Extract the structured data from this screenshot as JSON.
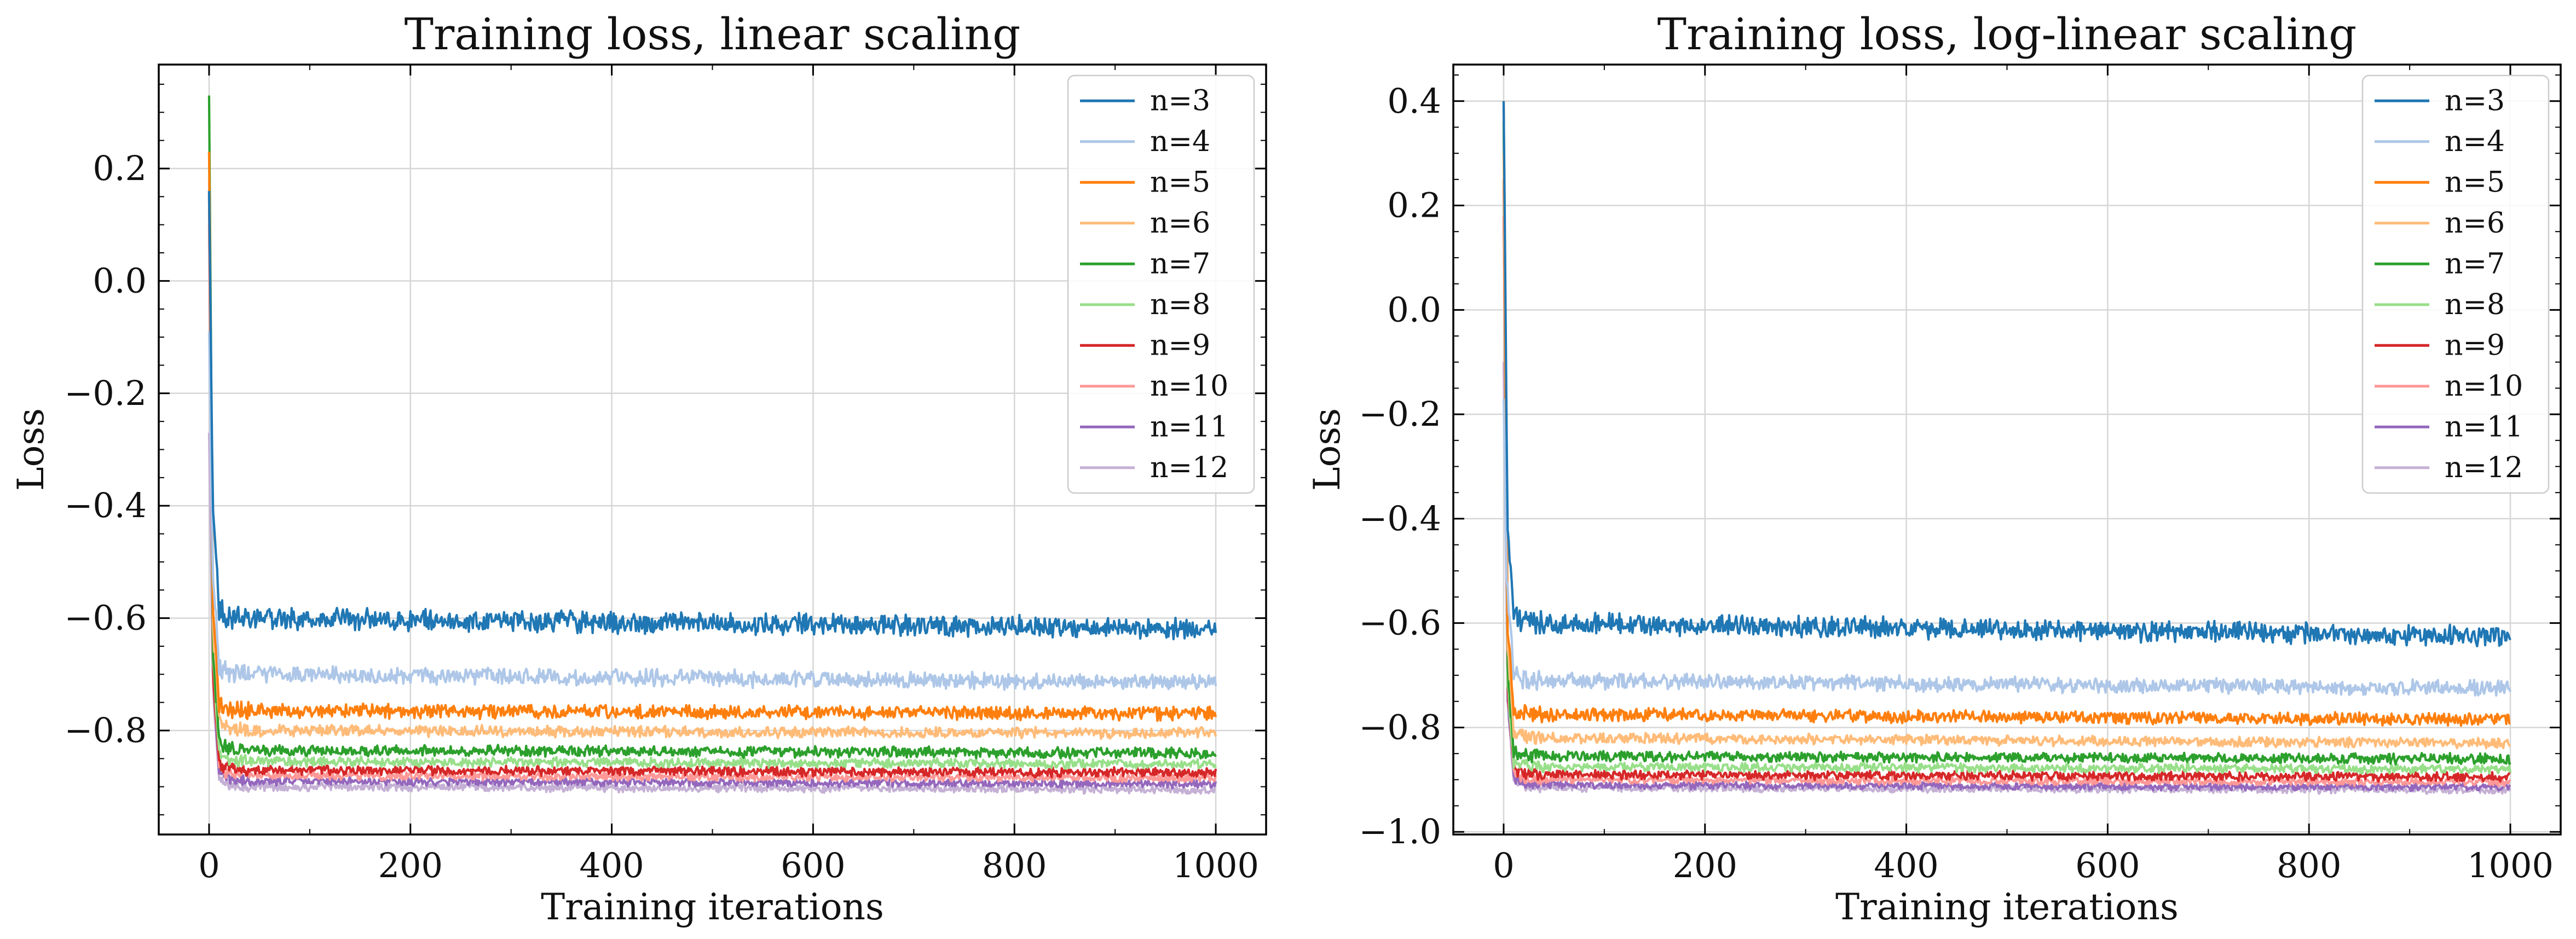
{
  "figure": {
    "series_colors": {
      "n=3": "#1f77b4",
      "n=4": "#aec7e8",
      "n=5": "#ff7f0e",
      "n=6": "#ffbb78",
      "n=7": "#2ca02c",
      "n=8": "#98df8a",
      "n=9": "#d62728",
      "n=10": "#ff9896",
      "n=11": "#9467bd",
      "n=12": "#c5b0d5"
    }
  },
  "chart_data": [
    {
      "type": "line",
      "title": "Training loss, linear scaling",
      "xlabel": "Training iterations",
      "ylabel": "Loss",
      "xlim": [
        -50,
        1050
      ],
      "ylim": [
        -0.985,
        0.385
      ],
      "xticks": [
        0,
        200,
        400,
        600,
        800,
        1000
      ],
      "yticks": [
        -0.8,
        -0.6,
        -0.4,
        -0.2,
        0.0,
        0.2
      ],
      "ytick_labels": [
        "−0.8",
        "−0.6",
        "−0.4",
        "−0.2",
        "0.0",
        "0.2"
      ],
      "grid": true,
      "legend_position": "top-right",
      "series": [
        {
          "name": "n=3",
          "start": 0.16,
          "peak_at": 40,
          "early_min": -0.57,
          "plateau": -0.6,
          "final": -0.62,
          "noise": 0.016
        },
        {
          "name": "n=4",
          "start": -0.09,
          "peak_at": 40,
          "early_min": -0.67,
          "plateau": -0.7,
          "final": -0.715,
          "noise": 0.012
        },
        {
          "name": "n=5",
          "start": 0.23,
          "peak_at": 40,
          "early_min": -0.74,
          "plateau": -0.765,
          "final": -0.77,
          "noise": 0.01
        },
        {
          "name": "n=6",
          "start": 0.18,
          "peak_at": 40,
          "early_min": -0.77,
          "plateau": -0.8,
          "final": -0.805,
          "noise": 0.008
        },
        {
          "name": "n=7",
          "start": 0.33,
          "peak_at": 40,
          "early_min": -0.81,
          "plateau": -0.835,
          "final": -0.84,
          "noise": 0.008
        },
        {
          "name": "n=8",
          "start": 0.23,
          "peak_at": 40,
          "early_min": -0.83,
          "plateau": -0.855,
          "final": -0.86,
          "noise": 0.007
        },
        {
          "name": "n=9",
          "start": 0.15,
          "peak_at": 40,
          "early_min": -0.85,
          "plateau": -0.87,
          "final": -0.875,
          "noise": 0.007
        },
        {
          "name": "n=10",
          "start": 0.1,
          "peak_at": 40,
          "early_min": -0.86,
          "plateau": -0.88,
          "final": -0.885,
          "noise": 0.006
        },
        {
          "name": "n=11",
          "start": 0.16,
          "peak_at": 40,
          "early_min": -0.87,
          "plateau": -0.89,
          "final": -0.895,
          "noise": 0.006
        },
        {
          "name": "n=12",
          "start": -0.27,
          "peak_at": 40,
          "early_min": -0.88,
          "plateau": -0.9,
          "final": -0.905,
          "noise": 0.006
        }
      ]
    },
    {
      "type": "line",
      "title": "Training loss, log-linear scaling",
      "xlabel": "Training iterations",
      "ylabel": "Loss",
      "xlim": [
        -50,
        1050
      ],
      "ylim": [
        -1.005,
        0.47
      ],
      "xticks": [
        0,
        200,
        400,
        600,
        800,
        1000
      ],
      "yticks": [
        -1.0,
        -0.8,
        -0.6,
        -0.4,
        -0.2,
        0.0,
        0.2,
        0.4
      ],
      "ytick_labels": [
        "−1.0",
        "−0.8",
        "−0.6",
        "−0.4",
        "−0.2",
        "0.0",
        "0.2",
        "0.4"
      ],
      "grid": true,
      "legend_position": "top-right",
      "series": [
        {
          "name": "n=3",
          "start": 0.4,
          "peak_at": 40,
          "early_min": -0.57,
          "plateau": -0.6,
          "final": -0.625,
          "noise": 0.016
        },
        {
          "name": "n=4",
          "start": -0.17,
          "peak_at": 40,
          "early_min": -0.69,
          "plateau": -0.71,
          "final": -0.725,
          "noise": 0.012
        },
        {
          "name": "n=5",
          "start": 0.4,
          "peak_at": 40,
          "early_min": -0.76,
          "plateau": -0.775,
          "final": -0.785,
          "noise": 0.01
        },
        {
          "name": "n=6",
          "start": 0.3,
          "peak_at": 40,
          "early_min": -0.8,
          "plateau": -0.82,
          "final": -0.83,
          "noise": 0.008
        },
        {
          "name": "n=7",
          "start": 0.36,
          "peak_at": 40,
          "early_min": -0.84,
          "plateau": -0.855,
          "final": -0.86,
          "noise": 0.008
        },
        {
          "name": "n=8",
          "start": 0.3,
          "peak_at": 40,
          "early_min": -0.86,
          "plateau": -0.875,
          "final": -0.88,
          "noise": 0.007
        },
        {
          "name": "n=9",
          "start": 0.25,
          "peak_at": 40,
          "early_min": -0.87,
          "plateau": -0.89,
          "final": -0.895,
          "noise": 0.007
        },
        {
          "name": "n=10",
          "start": 0.18,
          "peak_at": 40,
          "early_min": -0.88,
          "plateau": -0.9,
          "final": -0.905,
          "noise": 0.006
        },
        {
          "name": "n=11",
          "start": 0.39,
          "peak_at": 40,
          "early_min": -0.89,
          "plateau": -0.91,
          "final": -0.915,
          "noise": 0.006
        },
        {
          "name": "n=12",
          "start": -0.1,
          "peak_at": 40,
          "early_min": -0.9,
          "plateau": -0.915,
          "final": -0.92,
          "noise": 0.006
        }
      ]
    }
  ]
}
